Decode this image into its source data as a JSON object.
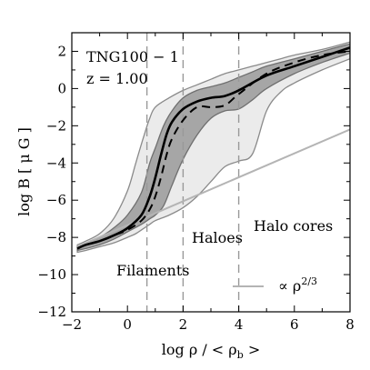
{
  "chart_data": {
    "type": "area",
    "xlabel": "log ρ / < ρ_b >",
    "ylabel": "log B [ μ G ]",
    "xlim": [
      -2,
      8
    ],
    "ylim": [
      -12,
      3
    ],
    "xticks": [
      -2,
      0,
      2,
      4,
      6,
      8
    ],
    "yticks": [
      -12,
      -10,
      -8,
      -6,
      -4,
      -2,
      0,
      2
    ],
    "xtick_labels": [
      "−2",
      "0",
      "2",
      "4",
      "6",
      "8"
    ],
    "ytick_labels": [
      "−12",
      "−10",
      "−8",
      "−6",
      "−4",
      "−2",
      "0",
      "2"
    ],
    "grid": false,
    "annotations": {
      "sim_label": "TNG100 − 1",
      "redshift_label": "z = 1.00",
      "filaments": "Filaments",
      "haloes": "Haloes",
      "halo_cores": "Halo cores"
    },
    "legend": {
      "label": "∝ ρ^2/3",
      "placement": "bottom-right"
    },
    "vlines": [
      0.7,
      2.0,
      4.0
    ],
    "outer_band": {
      "x": [
        -1.8,
        -1.5,
        -1.0,
        -0.5,
        0.0,
        0.3,
        0.6,
        0.8,
        1.0,
        1.5,
        2.0,
        2.5,
        3.0,
        3.5,
        4.0,
        4.5,
        5.0,
        5.5,
        6.0,
        7.0,
        8.0
      ],
      "upper": [
        -8.4,
        -8.2,
        -7.8,
        -7.0,
        -5.5,
        -4.0,
        -2.5,
        -1.6,
        -1.0,
        -0.5,
        -0.1,
        0.2,
        0.5,
        0.8,
        1.0,
        1.2,
        1.4,
        1.6,
        1.8,
        2.1,
        2.5
      ],
      "lower": [
        -8.8,
        -8.7,
        -8.5,
        -8.3,
        -8.0,
        -7.8,
        -7.5,
        -7.3,
        -7.1,
        -6.8,
        -6.4,
        -5.8,
        -5.0,
        -4.2,
        -3.9,
        -3.5,
        -1.2,
        -0.2,
        0.3,
        1.0,
        1.6
      ]
    },
    "inner_band": {
      "x": [
        -1.8,
        -1.5,
        -1.0,
        -0.5,
        0.0,
        0.5,
        0.8,
        1.0,
        1.3,
        1.6,
        2.0,
        2.5,
        3.0,
        3.5,
        4.0,
        4.5,
        5.0,
        6.0,
        7.0,
        8.0
      ],
      "upper": [
        -8.5,
        -8.3,
        -8.0,
        -7.5,
        -6.8,
        -5.6,
        -4.0,
        -3.2,
        -2.0,
        -1.2,
        -0.5,
        -0.1,
        0.1,
        0.3,
        0.6,
        0.9,
        1.2,
        1.6,
        2.0,
        2.4
      ],
      "lower": [
        -8.7,
        -8.6,
        -8.4,
        -8.1,
        -7.7,
        -7.3,
        -7.0,
        -6.8,
        -6.3,
        -5.2,
        -3.8,
        -2.5,
        -1.6,
        -1.2,
        -1.1,
        -0.6,
        0.0,
        0.8,
        1.4,
        1.9
      ]
    },
    "series": [
      {
        "style": "solid",
        "x": [
          -1.8,
          -1.5,
          -1.0,
          -0.5,
          0.0,
          0.5,
          0.8,
          1.0,
          1.2,
          1.4,
          1.6,
          2.0,
          2.5,
          3.0,
          3.5,
          4.0,
          5.0,
          6.0,
          7.0,
          8.0
        ],
        "y": [
          -8.6,
          -8.4,
          -8.2,
          -7.9,
          -7.5,
          -6.8,
          -5.8,
          -4.8,
          -3.6,
          -2.5,
          -1.8,
          -1.1,
          -0.7,
          -0.5,
          -0.4,
          -0.1,
          0.7,
          1.2,
          1.7,
          2.2
        ]
      },
      {
        "style": "dashed",
        "x": [
          -1.8,
          -1.5,
          -1.0,
          -0.5,
          0.0,
          0.5,
          0.8,
          1.0,
          1.2,
          1.4,
          1.6,
          2.0,
          2.5,
          3.0,
          3.5,
          4.0,
          5.0,
          6.0,
          7.0,
          8.0
        ],
        "y": [
          -8.6,
          -8.4,
          -8.2,
          -7.9,
          -7.6,
          -7.1,
          -6.5,
          -5.8,
          -4.8,
          -3.6,
          -2.7,
          -1.7,
          -1.0,
          -1.0,
          -0.9,
          -0.3,
          0.8,
          1.4,
          1.8,
          2.0
        ]
      },
      {
        "style": "reference",
        "x": [
          -1.8,
          8.0
        ],
        "y": [
          -8.5,
          -2.2
        ]
      }
    ],
    "colors": {
      "outer_band_fill": "#ebebeb",
      "outer_band_edge": "#8a8a8a",
      "inner_band_fill": "#a6a6a6",
      "inner_band_edge": "#6f6f6f",
      "median": "#000000",
      "reference_line": "#b4b4b4",
      "vline": "#999999"
    }
  }
}
